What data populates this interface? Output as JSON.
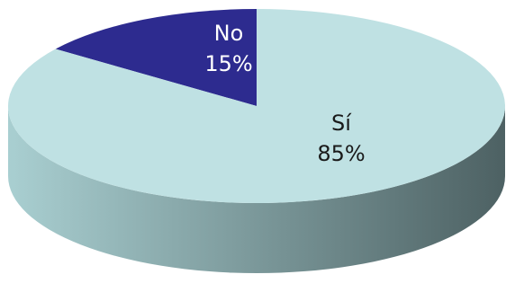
{
  "chart_data": {
    "type": "pie",
    "title": "",
    "style": "3d",
    "slices": [
      {
        "label": "Sí",
        "value": 85,
        "value_label": "85%",
        "color": "#bfe1e3",
        "label_color": "#1a1a1a"
      },
      {
        "label": "No",
        "value": 15,
        "value_label": "15%",
        "color": "#2d2b8f",
        "label_color": "#ffffff"
      }
    ],
    "side_colors": {
      "light": "#a9cfd1",
      "dark": "#4d6163"
    }
  }
}
